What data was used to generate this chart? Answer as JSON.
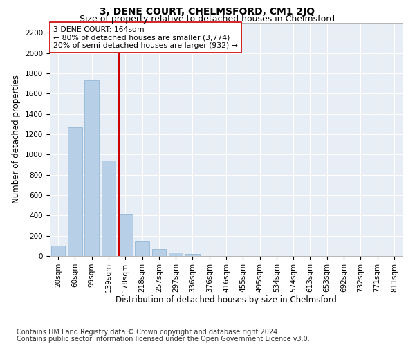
{
  "title": "3, DENE COURT, CHELMSFORD, CM1 2JQ",
  "subtitle": "Size of property relative to detached houses in Chelmsford",
  "xlabel": "Distribution of detached houses by size in Chelmsford",
  "ylabel": "Number of detached properties",
  "bar_labels": [
    "20sqm",
    "60sqm",
    "99sqm",
    "139sqm",
    "178sqm",
    "218sqm",
    "257sqm",
    "297sqm",
    "336sqm",
    "376sqm",
    "416sqm",
    "455sqm",
    "495sqm",
    "534sqm",
    "574sqm",
    "613sqm",
    "653sqm",
    "692sqm",
    "732sqm",
    "771sqm",
    "811sqm"
  ],
  "bar_values": [
    105,
    1270,
    1730,
    940,
    415,
    150,
    70,
    35,
    20,
    0,
    0,
    0,
    0,
    0,
    0,
    0,
    0,
    0,
    0,
    0,
    0
  ],
  "bar_color": "#b8cfe8",
  "bar_edgecolor": "#8aafd0",
  "bg_color": "#e8eef5",
  "grid_color": "#ffffff",
  "vline_x": 3.62,
  "vline_color": "#cc0000",
  "annotation_text": "3 DENE COURT: 164sqm\n← 80% of detached houses are smaller (3,774)\n20% of semi-detached houses are larger (932) →",
  "annotation_box_color": "#ffffff",
  "annotation_box_edgecolor": "#cc0000",
  "ylim": [
    0,
    2300
  ],
  "yticks": [
    0,
    200,
    400,
    600,
    800,
    1000,
    1200,
    1400,
    1600,
    1800,
    2000,
    2200
  ],
  "footer1": "Contains HM Land Registry data © Crown copyright and database right 2024.",
  "footer2": "Contains public sector information licensed under the Open Government Licence v3.0.",
  "title_fontsize": 10,
  "subtitle_fontsize": 9,
  "annotation_fontsize": 7.8,
  "ylabel_fontsize": 8.5,
  "xlabel_fontsize": 8.5,
  "footer_fontsize": 7.0,
  "tick_fontsize": 7.5,
  "ytick_fontsize": 7.5
}
